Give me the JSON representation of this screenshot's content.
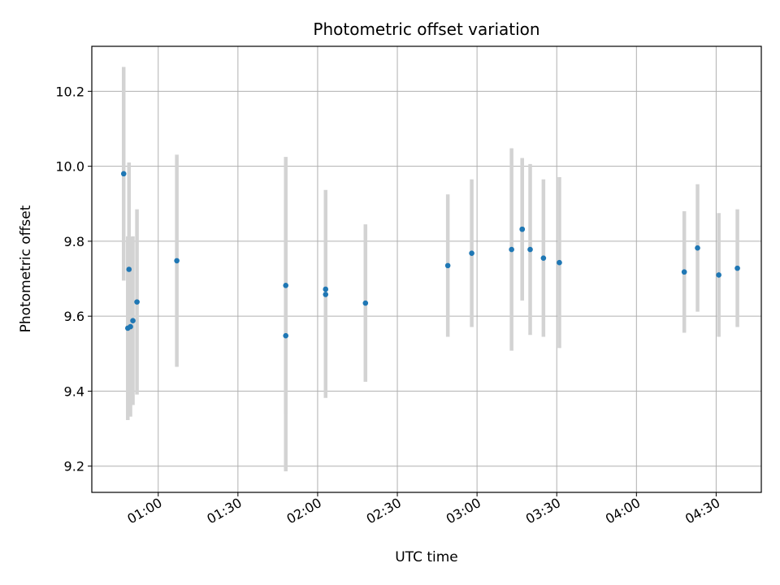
{
  "chart_data": {
    "type": "scatter",
    "title": "Photometric offset variation",
    "xlabel": "UTC time",
    "ylabel": "Photometric offset",
    "x_ticks": [
      "01:00",
      "01:30",
      "02:00",
      "02:30",
      "03:00",
      "03:30",
      "04:00",
      "04:30"
    ],
    "y_ticks": [
      "9.2",
      "9.4",
      "9.6",
      "9.8",
      "10.0",
      "10.2"
    ],
    "xlim": [
      "00:35",
      "04:47"
    ],
    "ylim": [
      9.13,
      10.32
    ],
    "grid": true,
    "colors": {
      "point": "#1f77b4",
      "errorbar": "#d3d3d3",
      "grid": "#b0b0b0"
    },
    "points": [
      {
        "x": "00:47",
        "y": 9.98,
        "yerr": 0.285
      },
      {
        "x": "00:49",
        "y": 9.725,
        "yerr": 0.285
      },
      {
        "x": "00:49",
        "y": 9.568,
        "yerr": 0.245
      },
      {
        "x": "00:50",
        "y": 9.588,
        "yerr": 0.225
      },
      {
        "x": "00:50",
        "y": 9.572,
        "yerr": 0.24
      },
      {
        "x": "00:52",
        "y": 9.638,
        "yerr": 0.247
      },
      {
        "x": "01:07",
        "y": 9.748,
        "yerr": 0.283
      },
      {
        "x": "01:48",
        "y": 9.682,
        "yerr": 0.343
      },
      {
        "x": "01:48",
        "y": 9.548,
        "yerr": 0.362
      },
      {
        "x": "02:03",
        "y": 9.672,
        "yerr": 0.265
      },
      {
        "x": "02:03",
        "y": 9.658,
        "yerr": 0.276
      },
      {
        "x": "02:18",
        "y": 9.635,
        "yerr": 0.21
      },
      {
        "x": "02:49",
        "y": 9.735,
        "yerr": 0.19
      },
      {
        "x": "02:58",
        "y": 9.768,
        "yerr": 0.197
      },
      {
        "x": "03:13",
        "y": 9.778,
        "yerr": 0.27
      },
      {
        "x": "03:17",
        "y": 9.832,
        "yerr": 0.19
      },
      {
        "x": "03:17",
        "y": 9.832,
        "yerr": 0.19
      },
      {
        "x": "03:20",
        "y": 9.778,
        "yerr": 0.228
      },
      {
        "x": "03:25",
        "y": 9.755,
        "yerr": 0.21
      },
      {
        "x": "03:31",
        "y": 9.743,
        "yerr": 0.228
      },
      {
        "x": "04:18",
        "y": 9.718,
        "yerr": 0.162
      },
      {
        "x": "04:23",
        "y": 9.782,
        "yerr": 0.17
      },
      {
        "x": "04:31",
        "y": 9.71,
        "yerr": 0.165
      },
      {
        "x": "04:38",
        "y": 9.728,
        "yerr": 0.157
      }
    ]
  }
}
